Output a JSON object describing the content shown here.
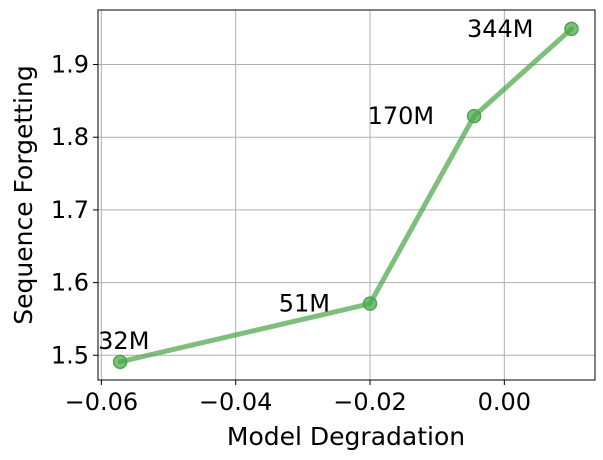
{
  "chart_data": {
    "type": "line",
    "title": "",
    "xlabel": "Model Degradation",
    "ylabel": "Sequence Forgetting",
    "xlim": [
      -0.0605,
      0.0135
    ],
    "ylim": [
      1.466,
      1.975
    ],
    "x_ticks": [
      -0.06,
      -0.04,
      -0.02,
      0.0
    ],
    "x_tick_labels": [
      "−0.06",
      "−0.04",
      "−0.02",
      "0.00"
    ],
    "y_ticks": [
      1.5,
      1.6,
      1.7,
      1.8,
      1.9
    ],
    "y_tick_labels": [
      "1.5",
      "1.6",
      "1.7",
      "1.8",
      "1.9"
    ],
    "grid": true,
    "series": [
      {
        "color": "#4ca64c",
        "points": [
          {
            "x": -0.0572,
            "y": 1.491,
            "label": "32M"
          },
          {
            "x": -0.02,
            "y": 1.571,
            "label": "51M"
          },
          {
            "x": -0.0045,
            "y": 1.829,
            "label": "170M"
          },
          {
            "x": 0.01,
            "y": 1.949,
            "label": "344M"
          }
        ]
      }
    ]
  }
}
